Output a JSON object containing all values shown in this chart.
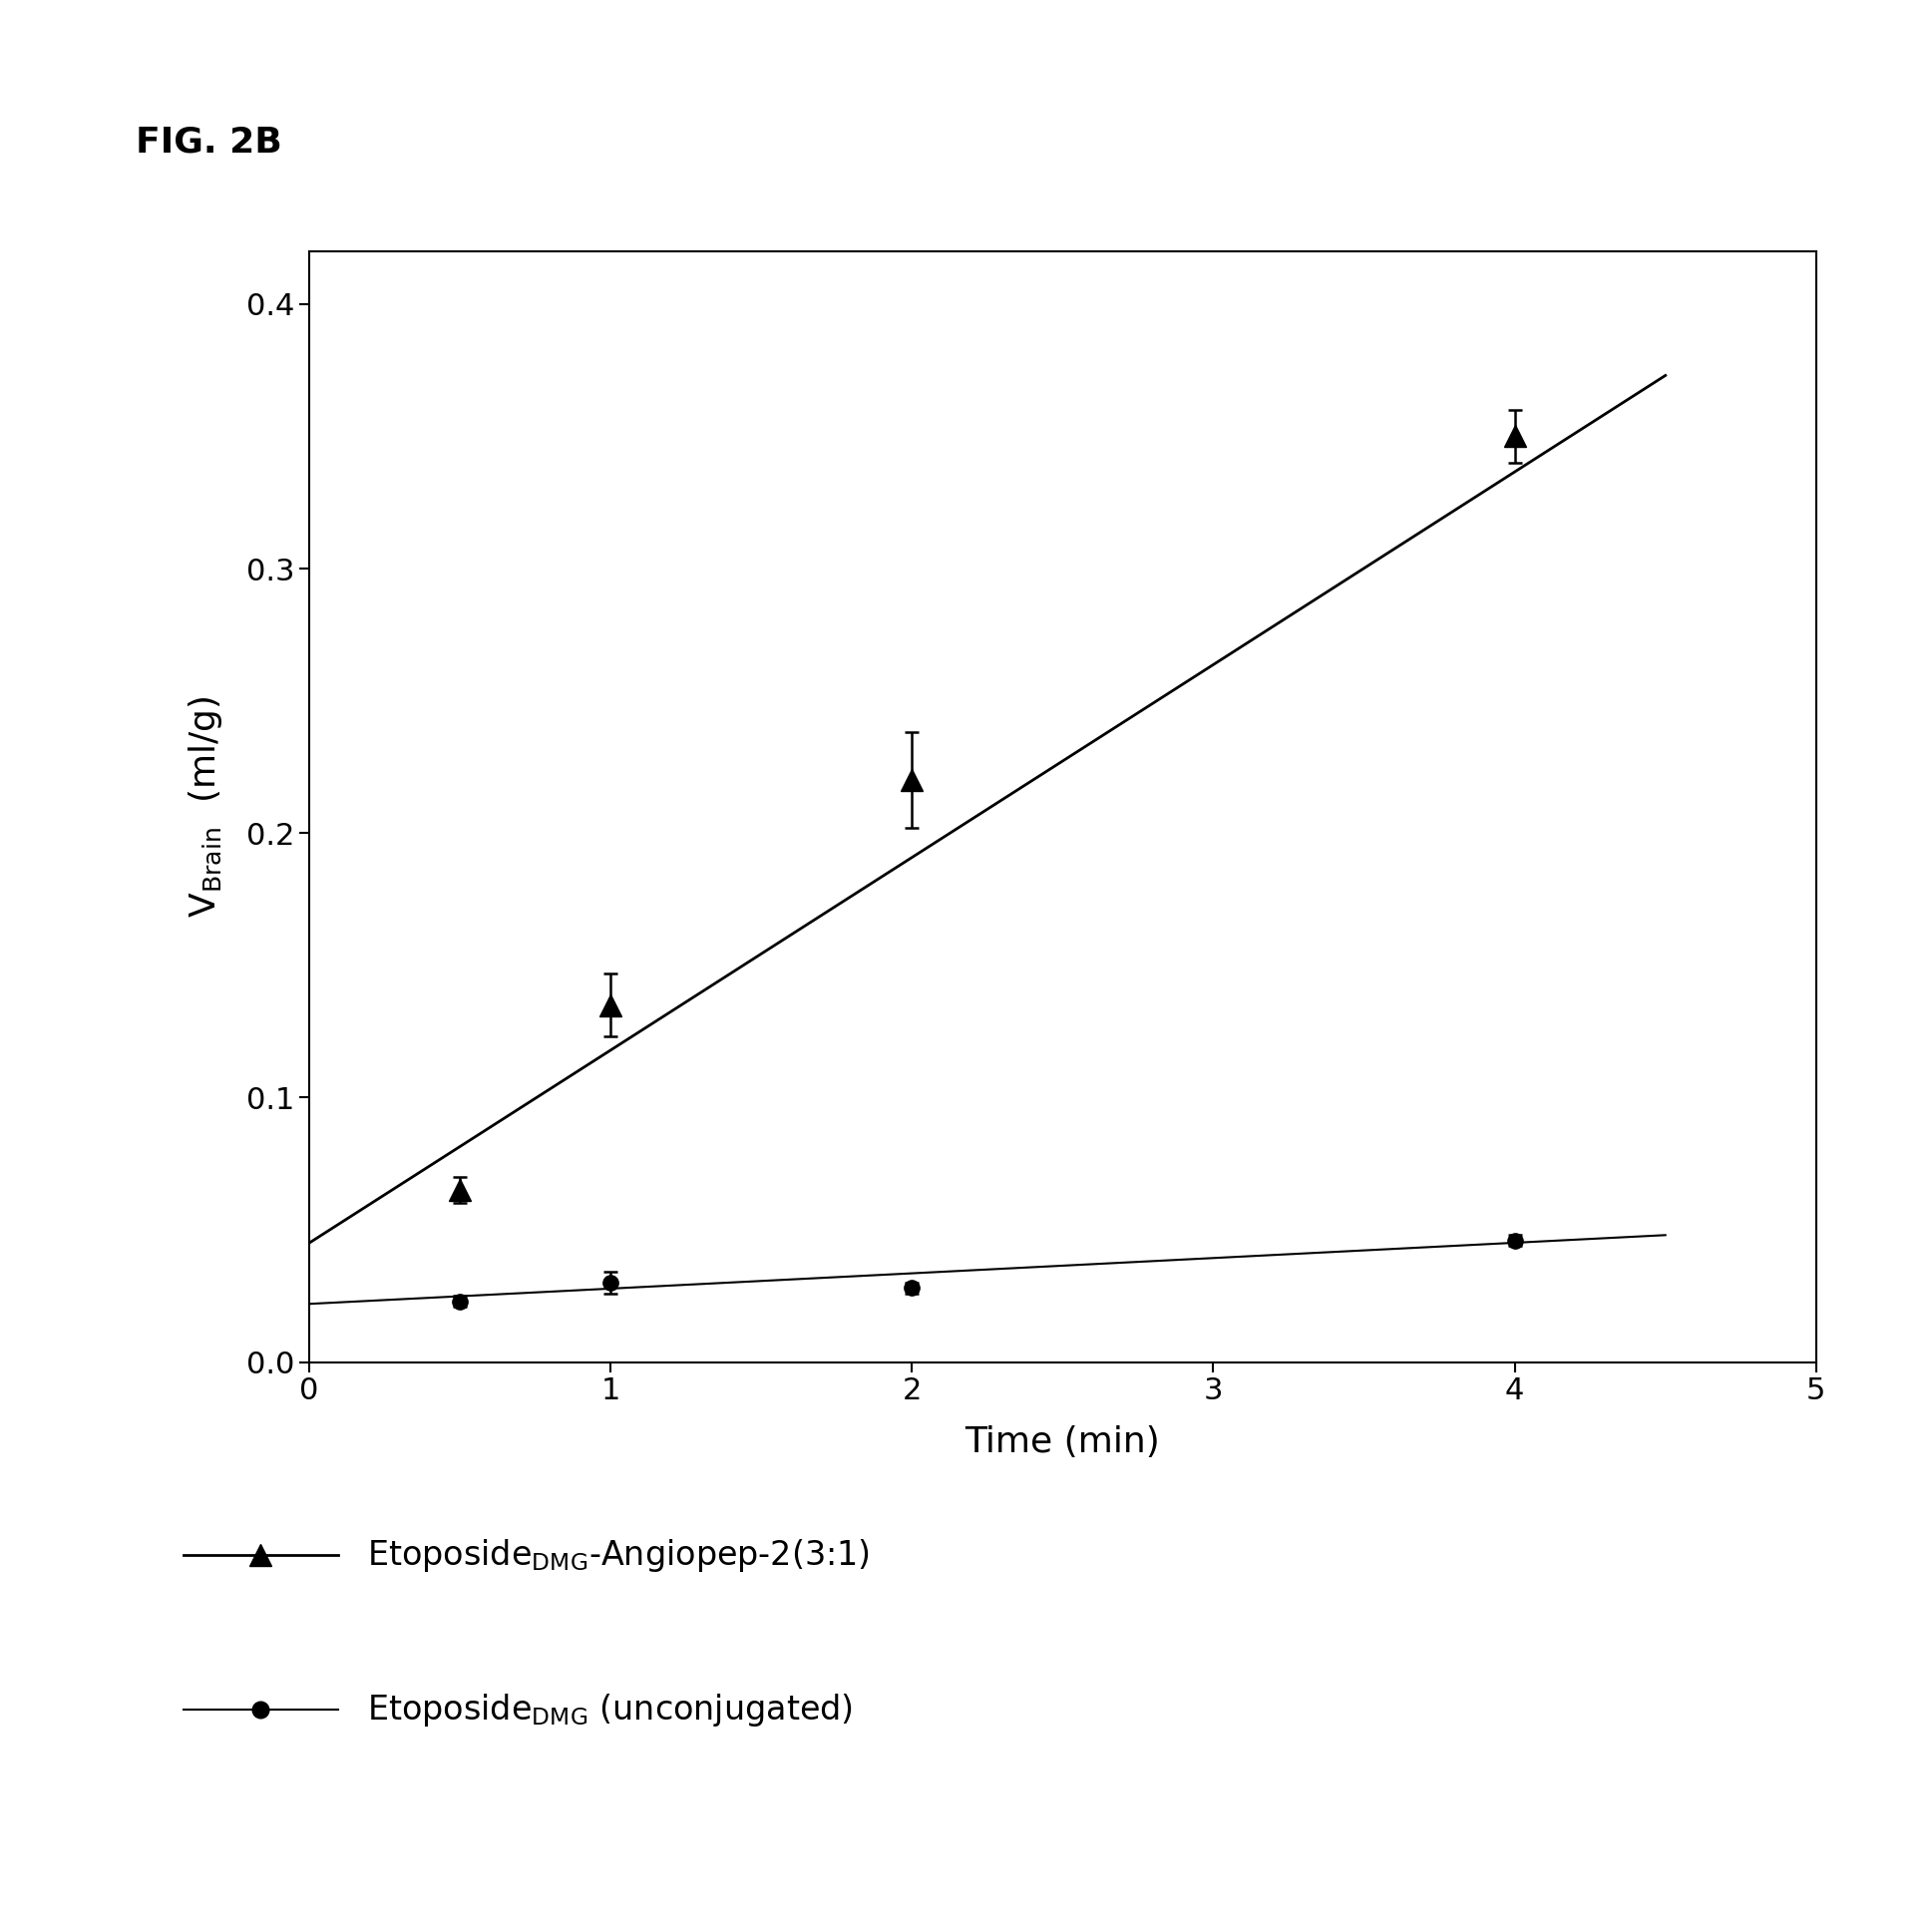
{
  "title": "FIG. 2B",
  "xlabel": "Time (min)",
  "xlim": [
    0,
    5
  ],
  "ylim": [
    0.0,
    0.42
  ],
  "xticks": [
    0,
    1,
    2,
    3,
    4,
    5
  ],
  "yticks": [
    0.0,
    0.1,
    0.2,
    0.3,
    0.4
  ],
  "series1": {
    "x": [
      0.5,
      1.0,
      2.0,
      4.0
    ],
    "y": [
      0.065,
      0.135,
      0.22,
      0.35
    ],
    "yerr": [
      0.005,
      0.012,
      0.018,
      0.01
    ],
    "marker": "^",
    "color": "#000000",
    "markersize": 16,
    "linewidth": 2.0,
    "fit_x": [
      0.0,
      4.5
    ],
    "fit_y": [
      0.045,
      0.373
    ]
  },
  "series2": {
    "x": [
      0.5,
      1.0,
      2.0,
      4.0
    ],
    "y": [
      0.023,
      0.03,
      0.028,
      0.046
    ],
    "yerr": [
      0.002,
      0.004,
      0.002,
      0.002
    ],
    "marker": "o",
    "color": "#000000",
    "markersize": 11,
    "linewidth": 1.5,
    "fit_x": [
      0.0,
      4.5
    ],
    "fit_y": [
      0.022,
      0.048
    ]
  },
  "background_color": "#ffffff",
  "figure_title": "FIG. 2B",
  "tick_labelsize": 22,
  "xlabel_fontsize": 26,
  "ylabel_fontsize": 26,
  "title_fontsize": 26,
  "legend_fontsize": 24
}
